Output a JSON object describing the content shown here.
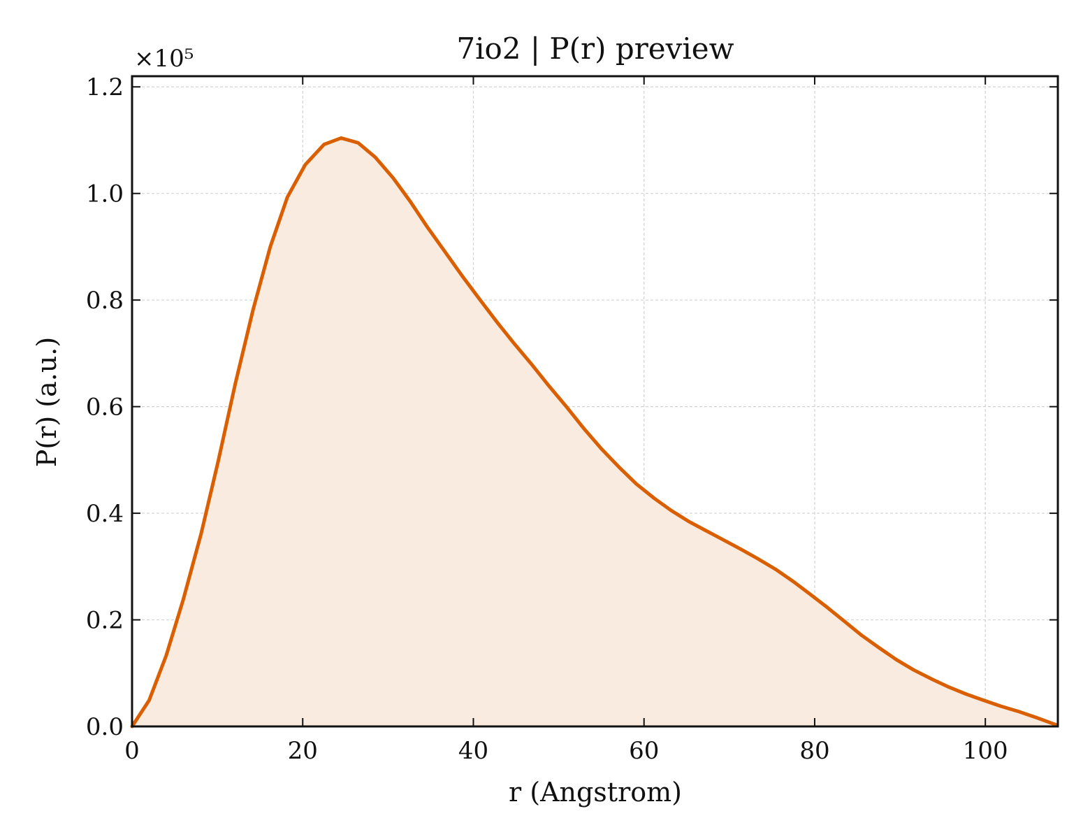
{
  "chart_data": {
    "type": "area",
    "title": "7io2 | P(r) preview",
    "xlabel": "r (Angstrom)",
    "ylabel": "P(r) (a.u.)",
    "y_multiplier_label": "×10⁵",
    "xlim": [
      0,
      108.5
    ],
    "ylim": [
      0,
      1.22
    ],
    "xticks": [
      0,
      20,
      40,
      60,
      80,
      100
    ],
    "yticks": [
      0.0,
      0.2,
      0.4,
      0.6,
      0.8,
      1.0,
      1.2
    ],
    "xtick_labels": [
      "0",
      "20",
      "40",
      "60",
      "80",
      "100"
    ],
    "ytick_labels": [
      "0.0",
      "0.2",
      "0.4",
      "0.6",
      "0.8",
      "1.0",
      "1.2"
    ],
    "grid": true,
    "line_color": "#d95f02",
    "fill_color": "#f9ebe0",
    "series": [
      {
        "x": [
          0,
          2,
          4,
          6,
          8.1,
          10.1,
          12.1,
          14.2,
          16.2,
          18.2,
          20.3,
          22.5,
          24.5,
          26.5,
          28.5,
          30.6,
          32.6,
          34.6,
          36.7,
          38.7,
          40.8,
          42.8,
          44.8,
          46.9,
          48.9,
          51,
          53,
          55,
          57.1,
          59.1,
          61.2,
          63.2,
          65.2,
          67.3,
          69.3,
          71.3,
          73.3,
          75.4,
          77.4,
          79.4,
          81.5,
          83.5,
          85.5,
          87.6,
          89.6,
          91.6,
          93.7,
          95.7,
          97.7,
          99.8,
          101.8,
          103.9,
          105.9,
          108.3
        ],
        "y": [
          0.0,
          0.049,
          0.133,
          0.238,
          0.362,
          0.498,
          0.643,
          0.783,
          0.9,
          0.993,
          1.054,
          1.092,
          1.104,
          1.095,
          1.068,
          1.029,
          0.985,
          0.937,
          0.89,
          0.845,
          0.8,
          0.758,
          0.718,
          0.678,
          0.638,
          0.598,
          0.558,
          0.521,
          0.486,
          0.455,
          0.428,
          0.405,
          0.385,
          0.367,
          0.35,
          0.333,
          0.315,
          0.295,
          0.273,
          0.249,
          0.223,
          0.197,
          0.171,
          0.147,
          0.125,
          0.106,
          0.089,
          0.074,
          0.061,
          0.049,
          0.038,
          0.028,
          0.017,
          0.003
        ]
      }
    ]
  }
}
